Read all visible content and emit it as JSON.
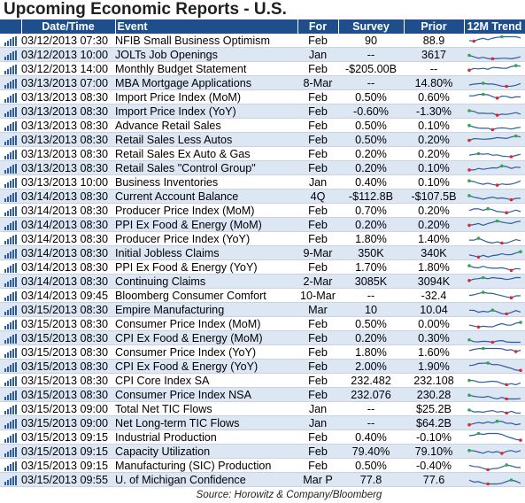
{
  "title": "Upcoming Economic Reports - U.S.",
  "columns": {
    "datetime": "Date/Time",
    "event": "Event",
    "for": "For",
    "survey": "Survey",
    "prior": "Prior",
    "trend": "12M Trend"
  },
  "colors": {
    "header_bg": "#1f4e8c",
    "row_alt": "#dde6f3",
    "spark_line": "#2f5c9c",
    "spark_low": "#e0262e",
    "spark_high": "#2ea84a"
  },
  "icons": {
    "row_icon": "bar-chart-icon"
  },
  "rows": [
    {
      "datetime": "03/12/2013 07:30",
      "event": "NFIB Small Business Optimism",
      "for": "Feb",
      "survey": "90",
      "prior": "88.9"
    },
    {
      "datetime": "03/12/2013 10:00",
      "event": "JOLTs Job Openings",
      "for": "Jan",
      "survey": "--",
      "prior": "3617"
    },
    {
      "datetime": "03/12/2013 14:00",
      "event": "Monthly Budget Statement",
      "for": "Feb",
      "survey": "-$205.00B",
      "prior": "--"
    },
    {
      "datetime": "03/13/2013 07:00",
      "event": "MBA Mortgage Applications",
      "for": "8-Mar",
      "survey": "--",
      "prior": "14.80%"
    },
    {
      "datetime": "03/13/2013 08:30",
      "event": "Import Price Index (MoM)",
      "for": "Feb",
      "survey": "0.50%",
      "prior": "0.60%"
    },
    {
      "datetime": "03/13/2013 08:30",
      "event": "Import Price Index (YoY)",
      "for": "Feb",
      "survey": "-0.60%",
      "prior": "-1.30%"
    },
    {
      "datetime": "03/13/2013 08:30",
      "event": "Advance Retail Sales",
      "for": "Feb",
      "survey": "0.50%",
      "prior": "0.10%"
    },
    {
      "datetime": "03/13/2013 08:30",
      "event": "Retail Sales Less Autos",
      "for": "Feb",
      "survey": "0.50%",
      "prior": "0.20%"
    },
    {
      "datetime": "03/13/2013 08:30",
      "event": "Retail Sales Ex Auto & Gas",
      "for": "Feb",
      "survey": "0.20%",
      "prior": "0.20%"
    },
    {
      "datetime": "03/13/2013 08:30",
      "event": "Retail Sales \"Control Group\"",
      "for": "Feb",
      "survey": "0.20%",
      "prior": "0.10%"
    },
    {
      "datetime": "03/13/2013 10:00",
      "event": "Business Inventories",
      "for": "Jan",
      "survey": "0.40%",
      "prior": "0.10%"
    },
    {
      "datetime": "03/14/2013 08:30",
      "event": "Current Account Balance",
      "for": "4Q",
      "survey": "-$112.8B",
      "prior": "-$107.5B"
    },
    {
      "datetime": "03/14/2013 08:30",
      "event": "Producer Price Index (MoM)",
      "for": "Feb",
      "survey": "0.70%",
      "prior": "0.20%"
    },
    {
      "datetime": "03/14/2013 08:30",
      "event": "PPI Ex Food & Energy (MoM)",
      "for": "Feb",
      "survey": "0.20%",
      "prior": "0.20%"
    },
    {
      "datetime": "03/14/2013 08:30",
      "event": "Producer Price Index (YoY)",
      "for": "Feb",
      "survey": "1.80%",
      "prior": "1.40%"
    },
    {
      "datetime": "03/14/2013 08:30",
      "event": "Initial Jobless Claims",
      "for": "9-Mar",
      "survey": "350K",
      "prior": "340K"
    },
    {
      "datetime": "03/14/2013 08:30",
      "event": "PPI Ex Food & Energy (YoY)",
      "for": "Feb",
      "survey": "1.70%",
      "prior": "1.80%"
    },
    {
      "datetime": "03/14/2013 08:30",
      "event": "Continuing Claims",
      "for": "2-Mar",
      "survey": "3085K",
      "prior": "3094K"
    },
    {
      "datetime": "03/14/2013 09:45",
      "event": "Bloomberg Consumer Comfort",
      "for": "10-Mar",
      "survey": "--",
      "prior": "-32.4"
    },
    {
      "datetime": "03/15/2013 08:30",
      "event": "Empire Manufacturing",
      "for": "Mar",
      "survey": "10",
      "prior": "10.04"
    },
    {
      "datetime": "03/15/2013 08:30",
      "event": "Consumer Price Index (MoM)",
      "for": "Feb",
      "survey": "0.50%",
      "prior": "0.00%"
    },
    {
      "datetime": "03/15/2013 08:30",
      "event": "CPI Ex Food & Energy (MoM)",
      "for": "Feb",
      "survey": "0.20%",
      "prior": "0.30%"
    },
    {
      "datetime": "03/15/2013 08:30",
      "event": "Consumer Price Index (YoY)",
      "for": "Feb",
      "survey": "1.80%",
      "prior": "1.60%"
    },
    {
      "datetime": "03/15/2013 08:30",
      "event": "CPI Ex Food & Energy (YoY)",
      "for": "Feb",
      "survey": "2.00%",
      "prior": "1.90%"
    },
    {
      "datetime": "03/15/2013 08:30",
      "event": "CPI Core Index SA",
      "for": "Feb",
      "survey": "232.482",
      "prior": "232.108"
    },
    {
      "datetime": "03/15/2013 08:30",
      "event": "Consumer Price Index NSA",
      "for": "Feb",
      "survey": "232.076",
      "prior": "230.28"
    },
    {
      "datetime": "03/15/2013 09:00",
      "event": "Total Net TIC Flows",
      "for": "Jan",
      "survey": "--",
      "prior": "$25.2B"
    },
    {
      "datetime": "03/15/2013 09:00",
      "event": "Net Long-term TIC Flows",
      "for": "Jan",
      "survey": "--",
      "prior": "$64.2B"
    },
    {
      "datetime": "03/15/2013 09:15",
      "event": "Industrial Production",
      "for": "Feb",
      "survey": "0.40%",
      "prior": "-0.10%"
    },
    {
      "datetime": "03/15/2013 09:15",
      "event": "Capacity Utilization",
      "for": "Feb",
      "survey": "79.40%",
      "prior": "79.10%"
    },
    {
      "datetime": "03/15/2013 09:15",
      "event": "Manufacturing (SIC) Production",
      "for": "Feb",
      "survey": "0.50%",
      "prior": "-0.40%"
    },
    {
      "datetime": "03/15/2013 09:55",
      "event": "U. of Michigan Confidence",
      "for": "Mar P",
      "survey": "77.8",
      "prior": "77.6"
    }
  ],
  "source": "Source: Horowitz & Company/Bloomberg"
}
